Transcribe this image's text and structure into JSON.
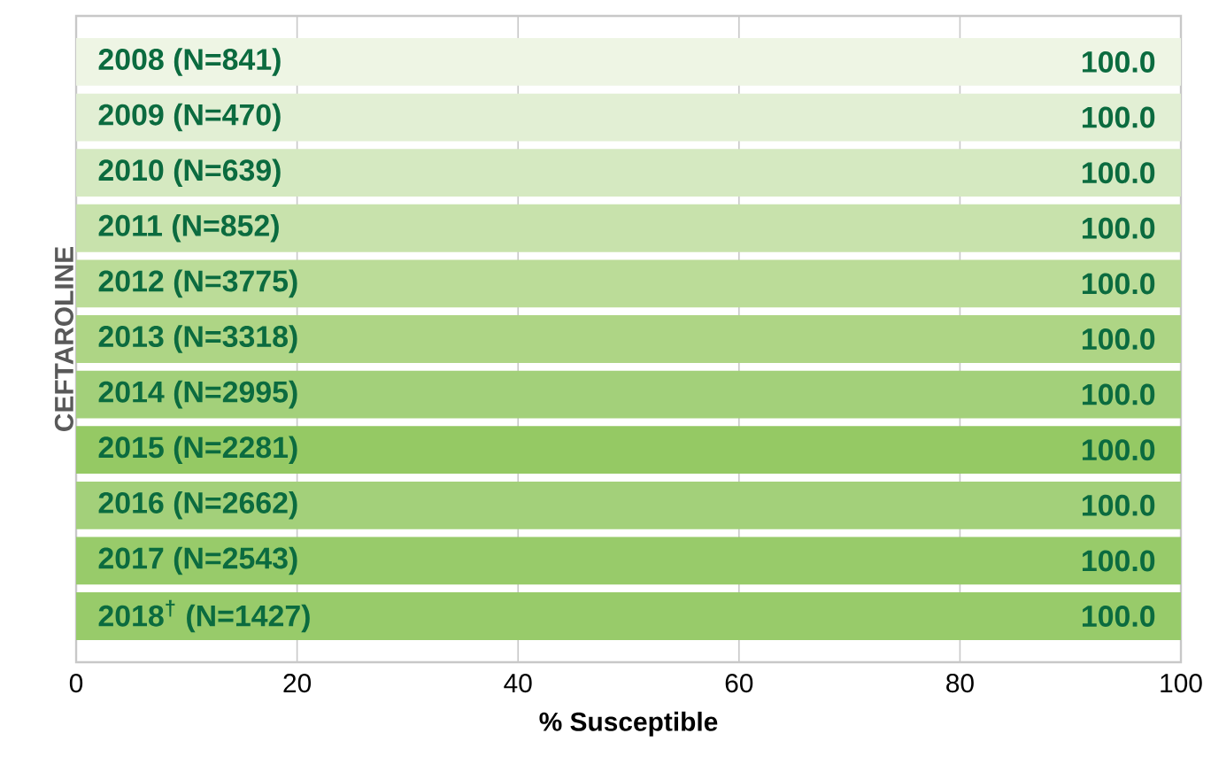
{
  "chart_data": {
    "type": "bar",
    "orientation": "horizontal",
    "xlabel": "% Susceptible",
    "ylabel": "CEFTAROLINE",
    "categories": [
      "2008 (N=841)",
      "2009 (N=470)",
      "2010 (N=639)",
      "2011 (N=852)",
      "2012 (N=3775)",
      "2013 (N=3318)",
      "2014 (N=2995)",
      "2015 (N=2281)",
      "2016 (N=2662)",
      "2017 (N=2543)",
      "2018$^{†}$ (N=1427)"
    ],
    "values": [
      100,
      100,
      100,
      100,
      100,
      100,
      100,
      100,
      100,
      100,
      100
    ],
    "value_labels": [
      "100.0",
      "100.0",
      "100.0",
      "100.0",
      "100.0",
      "100.0",
      "100.0",
      "100.0",
      "100.0",
      "100.0",
      "100.0"
    ],
    "colors": [
      "#eef5e4",
      "#e2efd4",
      "#d5e9c1",
      "#c8e2ac",
      "#bbdc98",
      "#aed585",
      "#a3d07a",
      "#95c964",
      "#a3d07a",
      "#98cb6a",
      "#98cb6a"
    ],
    "xlim": [
      0,
      100
    ],
    "xticks": [
      0,
      20,
      40,
      60,
      80,
      100
    ],
    "grid": "x"
  }
}
